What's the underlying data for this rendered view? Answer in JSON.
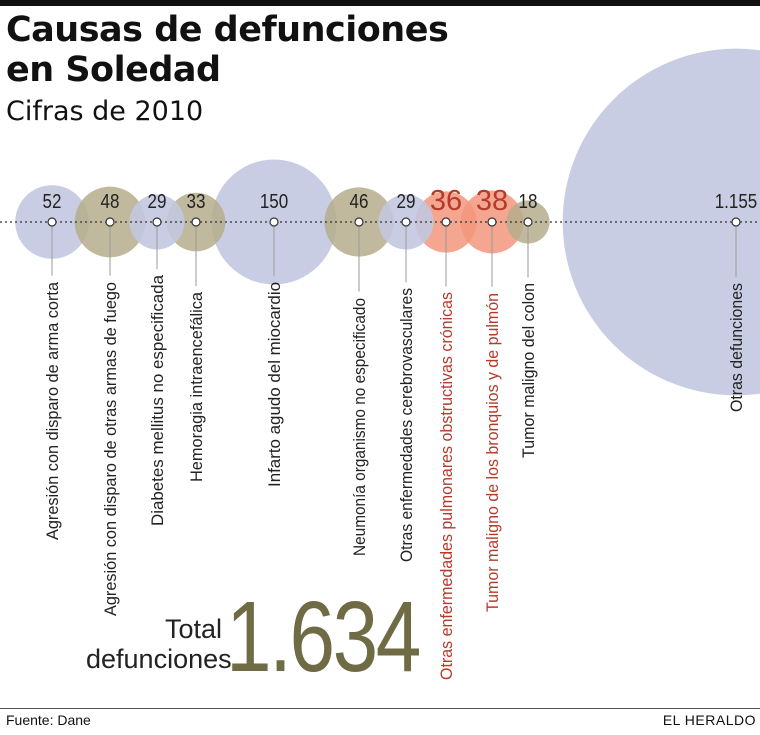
{
  "header": {
    "title_line1": "Causas de defunciones",
    "title_line2": "en Soledad",
    "subtitle": "Cifras de 2010"
  },
  "colors": {
    "blue": "#c3c8e0",
    "olive": "#b5ad8c",
    "red": "#f2967c",
    "red_text": "#b53a2a",
    "olive_text": "#6e6b45"
  },
  "chart_data": {
    "type": "bubble",
    "title": "Causas de defunciones en Soledad",
    "subtitle": "Cifras de 2010",
    "unit": "defunciones",
    "items": [
      {
        "label": "Agresión con disparo de arma corta",
        "value": 52,
        "display": "52",
        "color": "blue",
        "highlight": false
      },
      {
        "label": "Agresión con disparo de otras armas de fuego",
        "value": 48,
        "display": "48",
        "color": "olive",
        "highlight": false
      },
      {
        "label": "Diabetes mellitus no especificada",
        "value": 29,
        "display": "29",
        "color": "blue",
        "highlight": false
      },
      {
        "label": "Hemoragia intraencefálica",
        "value": 33,
        "display": "33",
        "color": "olive",
        "highlight": false
      },
      {
        "label": "Infarto agudo del miocardio",
        "value": 150,
        "display": "150",
        "color": "blue",
        "highlight": false
      },
      {
        "label": "Neumonía organismo no especificado",
        "value": 46,
        "display": "46",
        "color": "olive",
        "highlight": false
      },
      {
        "label": "Otras enfermedades cerebrovasculares",
        "value": 29,
        "display": "29",
        "color": "blue",
        "highlight": false
      },
      {
        "label": "Otras enfermedades pulmonares obstructivas crónicas",
        "value": 36,
        "display": "36",
        "color": "red",
        "highlight": true
      },
      {
        "label": "Tumor maligno de los bronquios y de pulmón",
        "value": 38,
        "display": "38",
        "color": "red",
        "highlight": true
      },
      {
        "label": "Tumor maligno del colon",
        "value": 18,
        "display": "18",
        "color": "olive",
        "highlight": false
      },
      {
        "label": "Otras defunciones",
        "value": 1155,
        "display": "1.155",
        "color": "blue",
        "highlight": false
      }
    ],
    "total_label": "Total defunciones",
    "total": 1634,
    "total_display": "1.634"
  },
  "total": {
    "line1": "Total",
    "line2": "defunciones",
    "value": "1.634"
  },
  "footer": {
    "source": "Fuente: Dane",
    "brand": "EL HERALDO"
  }
}
